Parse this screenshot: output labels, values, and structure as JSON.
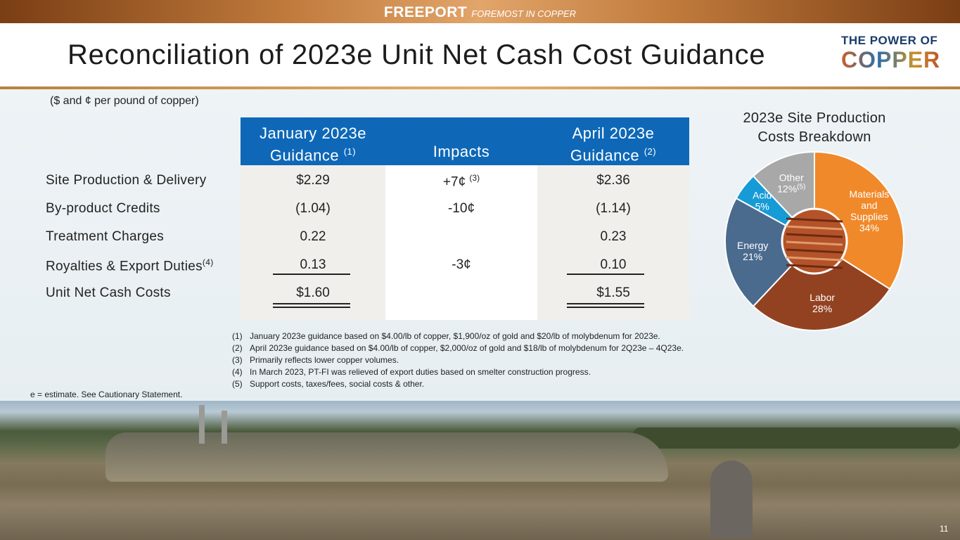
{
  "brand": {
    "name": "FREEPORT",
    "tagline": "FOREMOST IN COPPER"
  },
  "logo": {
    "line1": "THE POWER OF",
    "line2": "COPPER"
  },
  "title": "Reconciliation of 2023e Unit Net Cash Cost Guidance",
  "unit_note": "($ and ¢ per pound of copper)",
  "table": {
    "columns": [
      {
        "line1": "January 2023e",
        "line2": "Guidance",
        "sup": "(1)"
      },
      {
        "line1": "",
        "line2": "Impacts",
        "sup": ""
      },
      {
        "line1": "April 2023e",
        "line2": "Guidance",
        "sup": "(2)"
      }
    ],
    "rows": [
      {
        "label": "Site Production & Delivery",
        "label_sup": "",
        "jan": "$2.29",
        "impact": "+7¢",
        "impact_sup": "(3)",
        "apr": "$2.36"
      },
      {
        "label": "By-product Credits",
        "label_sup": "",
        "jan": "(1.04)",
        "impact": "-10¢",
        "impact_sup": "",
        "apr": "(1.14)"
      },
      {
        "label": "Treatment Charges",
        "label_sup": "",
        "jan": "0.22",
        "impact": "",
        "impact_sup": "",
        "apr": "0.23"
      },
      {
        "label": "Royalties & Export Duties",
        "label_sup": "(4)",
        "jan": "0.13",
        "impact": "-3¢",
        "impact_sup": "",
        "apr": "0.10"
      },
      {
        "label": "Unit Net Cash Costs",
        "label_sup": "",
        "jan": "$1.60",
        "impact": "",
        "impact_sup": "",
        "apr": "$1.55"
      }
    ]
  },
  "notes": [
    {
      "num": "(1)",
      "text": "January 2023e guidance based on $4.00/lb of copper, $1,900/oz of gold and $20/lb of molybdenum for 2023e."
    },
    {
      "num": "(2)",
      "text": "April 2023e guidance based on $4.00/lb of copper, $2,000/oz of gold and $18/lb of molybdenum for 2Q23e – 4Q23e."
    },
    {
      "num": "(3)",
      "text": "Primarily reflects lower copper volumes."
    },
    {
      "num": "(4)",
      "text": "In March 2023, PT-FI was relieved of export duties based on smelter construction progress."
    },
    {
      "num": "(5)",
      "text": "Support costs, taxes/fees, social costs & other."
    }
  ],
  "estimate_note": "e = estimate. See Cautionary Statement.",
  "page_number": "11",
  "chart_data": {
    "type": "pie",
    "title": "2023e Site Production Costs Breakdown",
    "title_lines": [
      "2023e Site Production",
      "Costs Breakdown"
    ],
    "slices": [
      {
        "name": "Materials and Supplies",
        "label_lines": [
          "Materials",
          "and",
          "Supplies"
        ],
        "value": 34,
        "pct_label": "34%",
        "sup": "",
        "color": "#f0892a"
      },
      {
        "name": "Labor",
        "label_lines": [
          "Labor"
        ],
        "value": 28,
        "pct_label": "28%",
        "sup": "",
        "color": "#934221"
      },
      {
        "name": "Energy",
        "label_lines": [
          "Energy"
        ],
        "value": 21,
        "pct_label": "21%",
        "sup": "",
        "color": "#4a6a8e"
      },
      {
        "name": "Acid",
        "label_lines": [
          "Acid"
        ],
        "value": 5,
        "pct_label": "5%",
        "sup": "",
        "color": "#169bd7"
      },
      {
        "name": "Other",
        "label_lines": [
          "Other"
        ],
        "value": 12,
        "pct_label": "12%",
        "sup": "(5)",
        "color": "#a8a8a8"
      }
    ]
  }
}
